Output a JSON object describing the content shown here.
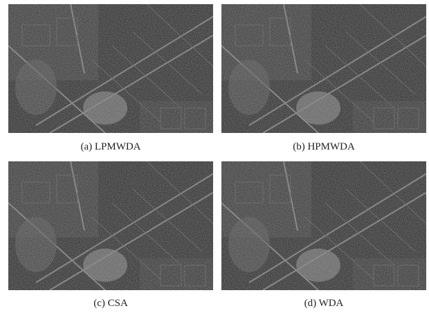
{
  "figures": [
    {
      "caption": "(a) LPMWDA"
    },
    {
      "caption": "(b) HPMWDA"
    },
    {
      "caption": "(c) CSA"
    },
    {
      "caption": "(d) WDA"
    }
  ]
}
